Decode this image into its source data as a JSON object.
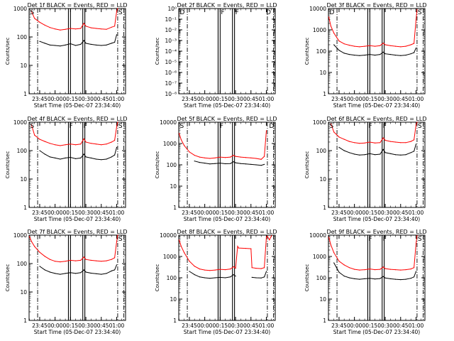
{
  "figure": {
    "xlabel": "Start Time (05-Dec-07 23:34:40)",
    "ylabel": "Counts/sec",
    "colors": {
      "events": "#000000",
      "lld": "#ff0000",
      "axes": "#000000",
      "background": "#ffffff"
    }
  },
  "chart_data": [
    {
      "type": "line",
      "title": "Det 1f BLACK = Events, RED = LLD",
      "yscale": "log",
      "ylim": [
        1,
        1000
      ],
      "ytick_labels": [
        "1",
        "10",
        "100",
        "1000"
      ],
      "xlim": [
        "23:34:40",
        "01:08:40"
      ],
      "xtick_labels": [
        "23:45",
        "00:00",
        "00:15",
        "00:30",
        "00:45",
        "01:00"
      ],
      "vertical_lines": {
        "dashdot": [
          "23:43",
          "01:01",
          "01:07"
        ],
        "solid": [
          "00:13",
          "00:15",
          "00:27",
          "00:29"
        ]
      },
      "markers": [
        {
          "label": "S",
          "time": "23:35"
        },
        {
          "label": "S",
          "time": "01:01"
        }
      ],
      "x": [
        "23:37",
        "23:40",
        "23:45",
        "23:50",
        "23:55",
        "00:00",
        "00:05",
        "00:10",
        "00:15",
        "00:20",
        "00:25",
        "00:28",
        "00:30",
        "00:35",
        "00:40",
        "00:45",
        "00:50",
        "00:55",
        "00:58",
        "01:00",
        "01:01"
      ],
      "series": [
        {
          "name": "LLD",
          "values": [
            800,
            450,
            330,
            260,
            215,
            190,
            175,
            185,
            200,
            190,
            200,
            300,
            240,
            210,
            200,
            190,
            185,
            220,
            240,
            800,
            1000
          ]
        },
        {
          "name": "Events",
          "values": [
            null,
            null,
            70,
            60,
            52,
            50,
            48,
            52,
            58,
            50,
            55,
            75,
            60,
            55,
            52,
            50,
            52,
            60,
            65,
            120,
            null
          ]
        }
      ]
    },
    {
      "type": "line",
      "title": "Det 2f BLACK = Events, RED = LLD",
      "yscale": "log",
      "ylim": [
        1e-08,
        1
      ],
      "ytick_labels": [
        "10⁻⁸",
        "10⁻⁷",
        "10⁻⁶",
        "10⁻⁵",
        "10⁻⁴",
        "10⁻³",
        "10⁻²",
        "10⁻¹",
        "10⁰"
      ],
      "xlim": [
        "23:34:40",
        "01:08:40"
      ],
      "xtick_labels": [
        "23:45",
        "00:00",
        "00:15",
        "00:30",
        "00:45",
        "01:00"
      ],
      "vertical_lines": {
        "dashdot": [
          "23:43",
          "01:01",
          "01:07"
        ],
        "solid": [
          "00:13",
          "00:15",
          "00:27",
          "00:29"
        ]
      },
      "markers": [
        {
          "label": "D",
          "time": "23:35"
        },
        {
          "label": "F",
          "time": "00:15"
        },
        {
          "label": "F",
          "time": "00:29"
        },
        {
          "label": "D",
          "time": "00:59"
        }
      ],
      "x": [],
      "series": []
    },
    {
      "type": "line",
      "title": "Det 3f BLACK = Events, RED = LLD",
      "yscale": "log",
      "ylim": [
        1,
        10000
      ],
      "ytick_labels": [
        "1",
        "10",
        "100",
        "1000",
        "10000"
      ],
      "xlim": [
        "23:34:40",
        "01:08:40"
      ],
      "xtick_labels": [
        "23:45",
        "00:00",
        "00:15",
        "00:30",
        "00:45",
        "01:00"
      ],
      "vertical_lines": {
        "dashdot": [
          "23:43",
          "01:01",
          "01:07"
        ],
        "solid": [
          "00:13",
          "00:15",
          "00:27",
          "00:29"
        ]
      },
      "markers": [
        {
          "label": "D",
          "time": "23:35"
        },
        {
          "label": "S",
          "time": "01:01"
        }
      ],
      "x": [
        "23:35",
        "23:37",
        "23:40",
        "23:45",
        "23:50",
        "23:55",
        "00:00",
        "00:05",
        "00:10",
        "00:15",
        "00:20",
        "00:25",
        "00:28",
        "00:30",
        "00:35",
        "00:40",
        "00:45",
        "00:50",
        "00:55",
        "00:58",
        "01:00",
        "01:01"
      ],
      "series": [
        {
          "name": "LLD",
          "values": [
            4000,
            1500,
            700,
            300,
            220,
            190,
            170,
            160,
            170,
            180,
            170,
            180,
            240,
            200,
            180,
            170,
            160,
            170,
            200,
            230,
            3000,
            9000
          ]
        },
        {
          "name": "Events",
          "values": [
            null,
            null,
            200,
            110,
            80,
            70,
            65,
            62,
            65,
            70,
            65,
            70,
            90,
            75,
            70,
            65,
            62,
            65,
            75,
            85,
            140,
            null
          ]
        }
      ]
    },
    {
      "type": "line",
      "title": "Det 4f BLACK = Events, RED = LLD",
      "yscale": "log",
      "ylim": [
        1,
        1000
      ],
      "ytick_labels": [
        "1",
        "10",
        "100",
        "1000"
      ],
      "xlim": [
        "23:34:40",
        "01:08:40"
      ],
      "xtick_labels": [
        "23:45",
        "00:00",
        "00:15",
        "00:30",
        "00:45",
        "01:00"
      ],
      "vertical_lines": {
        "dashdot": [
          "23:43",
          "01:01",
          "01:07"
        ],
        "solid": [
          "00:13",
          "00:15",
          "00:27",
          "00:29"
        ]
      },
      "markers": [
        {
          "label": "S",
          "time": "23:35"
        },
        {
          "label": "F",
          "time": "00:13"
        },
        {
          "label": "F",
          "time": "00:27"
        },
        {
          "label": "S",
          "time": "01:01"
        }
      ],
      "x": [
        "23:37",
        "23:40",
        "23:45",
        "23:50",
        "23:55",
        "00:00",
        "00:05",
        "00:10",
        "00:15",
        "00:20",
        "00:25",
        "00:28",
        "00:30",
        "00:35",
        "00:40",
        "00:45",
        "00:50",
        "00:55",
        "00:58",
        "01:00",
        "01:01"
      ],
      "series": [
        {
          "name": "LLD",
          "values": [
            800,
            350,
            250,
            210,
            180,
            160,
            150,
            160,
            170,
            160,
            170,
            260,
            200,
            180,
            170,
            160,
            170,
            200,
            230,
            700,
            1000
          ]
        },
        {
          "name": "Events",
          "values": [
            null,
            null,
            100,
            75,
            60,
            55,
            50,
            55,
            58,
            52,
            55,
            75,
            60,
            55,
            50,
            48,
            50,
            60,
            70,
            130,
            null
          ]
        }
      ]
    },
    {
      "type": "line",
      "title": "Det 5f BLACK = Events, RED = LLD",
      "yscale": "log",
      "ylim": [
        1,
        10000
      ],
      "ytick_labels": [
        "1",
        "10",
        "100",
        "1000",
        "10000"
      ],
      "xlim": [
        "23:34:40",
        "01:08:40"
      ],
      "xtick_labels": [
        "23:45",
        "00:00",
        "00:15",
        "00:30",
        "00:45",
        "01:00"
      ],
      "vertical_lines": {
        "dashdot": [
          "23:43",
          "01:01",
          "01:07"
        ],
        "solid": [
          "00:13",
          "00:15",
          "00:27",
          "00:29"
        ]
      },
      "markers": [
        {
          "label": "S",
          "time": "23:35"
        },
        {
          "label": "F",
          "time": "00:14"
        },
        {
          "label": "D",
          "time": "01:02"
        }
      ],
      "x": [
        "23:35",
        "23:37",
        "23:40",
        "23:45",
        "23:50",
        "23:55",
        "00:00",
        "00:05",
        "00:10",
        "00:15",
        "00:20",
        "00:25",
        "00:28",
        "00:30",
        "00:35",
        "00:40",
        "00:45",
        "00:50",
        "00:55",
        "00:58",
        "01:00"
      ],
      "series": [
        {
          "name": "LLD",
          "values": [
            3000,
            1500,
            800,
            400,
            280,
            230,
            210,
            200,
            210,
            230,
            220,
            230,
            280,
            250,
            230,
            220,
            210,
            200,
            180,
            250,
            4000
          ]
        },
        {
          "name": "Events",
          "values": [
            null,
            null,
            null,
            null,
            150,
            130,
            120,
            110,
            115,
            120,
            112,
            115,
            140,
            125,
            115,
            110,
            105,
            100,
            95,
            105,
            null
          ]
        }
      ]
    },
    {
      "type": "line",
      "title": "Det 6f BLACK = Events, RED = LLD",
      "yscale": "log",
      "ylim": [
        1,
        1000
      ],
      "ytick_labels": [
        "1",
        "10",
        "100",
        "1000"
      ],
      "xlim": [
        "23:34:40",
        "01:08:40"
      ],
      "xtick_labels": [
        "23:45",
        "00:00",
        "00:15",
        "00:30",
        "00:45",
        "01:00"
      ],
      "vertical_lines": {
        "dashdot": [
          "23:43",
          "01:01",
          "01:07"
        ],
        "solid": [
          "00:13",
          "00:15",
          "00:27",
          "00:29"
        ]
      },
      "markers": [
        {
          "label": "S",
          "time": "23:35"
        },
        {
          "label": "F",
          "time": "00:13"
        },
        {
          "label": "F",
          "time": "00:27"
        },
        {
          "label": "S",
          "time": "01:01"
        }
      ],
      "x": [
        "23:37",
        "23:40",
        "23:45",
        "23:50",
        "23:55",
        "00:00",
        "00:05",
        "00:10",
        "00:15",
        "00:20",
        "00:25",
        "00:28",
        "00:30",
        "00:35",
        "00:40",
        "00:45",
        "00:50",
        "00:55",
        "00:58",
        "01:00",
        "01:01"
      ],
      "series": [
        {
          "name": "LLD",
          "values": [
            900,
            450,
            300,
            250,
            210,
            190,
            180,
            185,
            200,
            185,
            190,
            280,
            230,
            210,
            200,
            190,
            190,
            210,
            240,
            800,
            1000
          ]
        },
        {
          "name": "Events",
          "values": [
            null,
            null,
            130,
            100,
            85,
            75,
            70,
            72,
            78,
            72,
            75,
            110,
            85,
            78,
            72,
            70,
            72,
            85,
            95,
            170,
            null
          ]
        }
      ]
    },
    {
      "type": "line",
      "title": "Det 7f BLACK = Events, RED = LLD",
      "yscale": "log",
      "ylim": [
        1,
        1000
      ],
      "ytick_labels": [
        "1",
        "10",
        "100",
        "1000"
      ],
      "xlim": [
        "23:34:40",
        "01:08:40"
      ],
      "xtick_labels": [
        "23:45",
        "00:00",
        "00:15",
        "00:30",
        "00:45",
        "01:00"
      ],
      "vertical_lines": {
        "dashdot": [
          "23:43",
          "01:01",
          "01:07"
        ],
        "solid": [
          "00:13",
          "00:15",
          "00:27",
          "00:29"
        ]
      },
      "markers": [
        {
          "label": "S",
          "time": "01:01"
        }
      ],
      "x": [
        "23:35",
        "23:37",
        "23:40",
        "23:45",
        "23:50",
        "23:55",
        "00:00",
        "00:05",
        "00:10",
        "00:15",
        "00:20",
        "00:25",
        "00:28",
        "00:30",
        "00:35",
        "00:40",
        "00:45",
        "00:50",
        "00:55",
        "00:58",
        "01:00",
        "01:01"
      ],
      "series": [
        {
          "name": "LLD",
          "values": [
            900,
            600,
            400,
            250,
            180,
            140,
            120,
            115,
            120,
            130,
            125,
            130,
            170,
            140,
            130,
            125,
            120,
            125,
            140,
            160,
            600,
            1000
          ]
        },
        {
          "name": "Events",
          "values": [
            null,
            null,
            null,
            80,
            60,
            50,
            45,
            42,
            45,
            48,
            45,
            48,
            60,
            50,
            46,
            44,
            42,
            45,
            55,
            60,
            90,
            null
          ]
        }
      ]
    },
    {
      "type": "line",
      "title": "Det 8f BLACK = Events, RED = LLD",
      "yscale": "log",
      "ylim": [
        1,
        10000
      ],
      "ytick_labels": [
        "1",
        "10",
        "100",
        "1000",
        "10000"
      ],
      "xlim": [
        "23:34:40",
        "01:08:40"
      ],
      "xtick_labels": [
        "23:45",
        "00:00",
        "00:15",
        "00:30",
        "00:45",
        "01:00"
      ],
      "vertical_lines": {
        "dashdot": [
          "23:43",
          "01:01",
          "01:07"
        ],
        "solid": [
          "00:13",
          "00:15",
          "00:27",
          "00:29"
        ]
      },
      "markers": [],
      "x": [
        "23:35",
        "23:37",
        "23:40",
        "23:45",
        "23:50",
        "23:55",
        "00:00",
        "00:05",
        "00:10",
        "00:15",
        "00:20",
        "00:25",
        "00:28",
        "00:30",
        "00:32",
        "00:33",
        "00:40",
        "00:45",
        "00:46",
        "00:50",
        "00:55",
        "00:58",
        "01:00",
        "01:01",
        "01:03",
        "01:05"
      ],
      "series": [
        {
          "name": "LLD",
          "values": [
            6000,
            3000,
            1500,
            600,
            350,
            260,
            230,
            220,
            230,
            250,
            240,
            260,
            330,
            280,
            3000,
            2500,
            2400,
            2300,
            300,
            280,
            270,
            300,
            8000,
            9000,
            6000,
            9500
          ]
        },
        {
          "name": "Events",
          "values": [
            null,
            null,
            null,
            200,
            140,
            110,
            100,
            95,
            100,
            105,
            100,
            110,
            140,
            120,
            null,
            null,
            null,
            null,
            105,
            100,
            98,
            110,
            200,
            null,
            null,
            null
          ]
        }
      ]
    },
    {
      "type": "line",
      "title": "Det 9f BLACK = Events, RED = LLD",
      "yscale": "log",
      "ylim": [
        1,
        10000
      ],
      "ytick_labels": [
        "1",
        "10",
        "100",
        "1000",
        "10000"
      ],
      "xlim": [
        "23:34:40",
        "01:08:40"
      ],
      "xtick_labels": [
        "23:45",
        "00:00",
        "00:15",
        "00:30",
        "00:45",
        "01:00"
      ],
      "vertical_lines": {
        "dashdot": [
          "23:43",
          "01:01",
          "01:07"
        ],
        "solid": [
          "00:13",
          "00:15",
          "00:27",
          "00:29"
        ]
      },
      "markers": [
        {
          "label": "F",
          "time": "00:13"
        },
        {
          "label": "F",
          "time": "00:27"
        },
        {
          "label": "S",
          "time": "01:01"
        }
      ],
      "x": [
        "23:35",
        "23:37",
        "23:40",
        "23:45",
        "23:50",
        "23:55",
        "00:00",
        "00:05",
        "00:10",
        "00:15",
        "00:20",
        "00:25",
        "00:28",
        "00:30",
        "00:35",
        "00:40",
        "00:45",
        "00:50",
        "00:55",
        "00:58",
        "01:00",
        "01:01"
      ],
      "series": [
        {
          "name": "LLD",
          "values": [
            8000,
            3500,
            1500,
            600,
            400,
            300,
            250,
            230,
            240,
            260,
            240,
            250,
            320,
            270,
            250,
            240,
            230,
            240,
            260,
            300,
            4000,
            9500
          ]
        },
        {
          "name": "Events",
          "values": [
            null,
            null,
            500,
            180,
            120,
            100,
            90,
            85,
            90,
            95,
            88,
            92,
            115,
            98,
            90,
            85,
            82,
            85,
            95,
            110,
            200,
            null
          ]
        }
      ]
    }
  ]
}
